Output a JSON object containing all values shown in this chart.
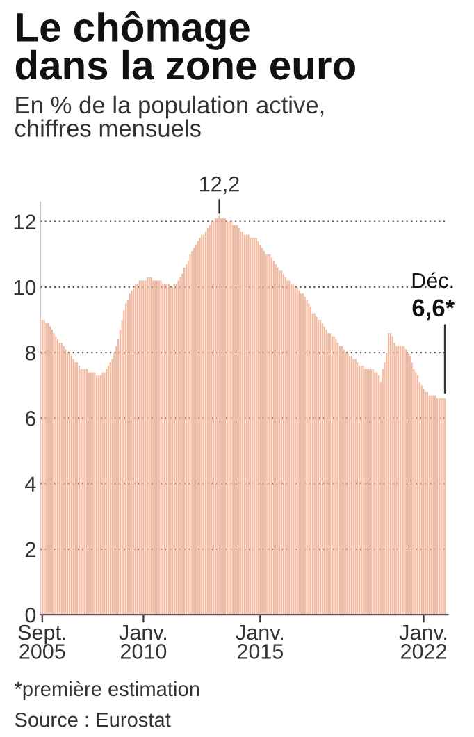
{
  "chart_data": {
    "type": "bar",
    "title": "Le chômage\ndans la zone euro",
    "subtitle": "En % de la population active,\nchiffres mensuels",
    "color": "#f0b9a0",
    "x": [
      "2005-09",
      "2005-10",
      "2005-11",
      "2005-12",
      "2006-01",
      "2006-02",
      "2006-03",
      "2006-04",
      "2006-05",
      "2006-06",
      "2006-07",
      "2006-08",
      "2006-09",
      "2006-10",
      "2006-11",
      "2006-12",
      "2007-01",
      "2007-02",
      "2007-03",
      "2007-04",
      "2007-05",
      "2007-06",
      "2007-07",
      "2007-08",
      "2007-09",
      "2007-10",
      "2007-11",
      "2007-12",
      "2008-01",
      "2008-02",
      "2008-03",
      "2008-04",
      "2008-05",
      "2008-06",
      "2008-07",
      "2008-08",
      "2008-09",
      "2008-10",
      "2008-11",
      "2008-12",
      "2009-01",
      "2009-02",
      "2009-03",
      "2009-04",
      "2009-05",
      "2009-06",
      "2009-07",
      "2009-08",
      "2009-09",
      "2009-10",
      "2009-11",
      "2009-12",
      "2010-01",
      "2010-02",
      "2010-03",
      "2010-04",
      "2010-05",
      "2010-06",
      "2010-07",
      "2010-08",
      "2010-09",
      "2010-10",
      "2010-11",
      "2010-12",
      "2011-01",
      "2011-02",
      "2011-03",
      "2011-04",
      "2011-05",
      "2011-06",
      "2011-07",
      "2011-08",
      "2011-09",
      "2011-10",
      "2011-11",
      "2011-12",
      "2012-01",
      "2012-02",
      "2012-03",
      "2012-04",
      "2012-05",
      "2012-06",
      "2012-07",
      "2012-08",
      "2012-09",
      "2012-10",
      "2012-11",
      "2012-12",
      "2013-01",
      "2013-02",
      "2013-03",
      "2013-04",
      "2013-05",
      "2013-06",
      "2013-07",
      "2013-08",
      "2013-09",
      "2013-10",
      "2013-11",
      "2013-12",
      "2014-01",
      "2014-02",
      "2014-03",
      "2014-04",
      "2014-05",
      "2014-06",
      "2014-07",
      "2014-08",
      "2014-09",
      "2014-10",
      "2014-11",
      "2014-12",
      "2015-01",
      "2015-02",
      "2015-03",
      "2015-04",
      "2015-05",
      "2015-06",
      "2015-07",
      "2015-08",
      "2015-09",
      "2015-10",
      "2015-11",
      "2015-12",
      "2016-01",
      "2016-02",
      "2016-03",
      "2016-04",
      "2016-05",
      "2016-06",
      "2016-07",
      "2016-08",
      "2016-09",
      "2016-10",
      "2016-11",
      "2016-12",
      "2017-01",
      "2017-02",
      "2017-03",
      "2017-04",
      "2017-05",
      "2017-06",
      "2017-07",
      "2017-08",
      "2017-09",
      "2017-10",
      "2017-11",
      "2017-12",
      "2018-01",
      "2018-02",
      "2018-03",
      "2018-04",
      "2018-05",
      "2018-06",
      "2018-07",
      "2018-08",
      "2018-09",
      "2018-10",
      "2018-11",
      "2018-12",
      "2019-01",
      "2019-02",
      "2019-03",
      "2019-04",
      "2019-05",
      "2019-06",
      "2019-07",
      "2019-08",
      "2019-09",
      "2019-10",
      "2019-11",
      "2019-12",
      "2020-01",
      "2020-02",
      "2020-03",
      "2020-04",
      "2020-05",
      "2020-06",
      "2020-07",
      "2020-08",
      "2020-09",
      "2020-10",
      "2020-11",
      "2020-12",
      "2021-01",
      "2021-02",
      "2021-03",
      "2021-04",
      "2021-05",
      "2021-06",
      "2021-07",
      "2021-08",
      "2021-09",
      "2021-10",
      "2021-11",
      "2021-12",
      "2022-01",
      "2022-02",
      "2022-03",
      "2022-04",
      "2022-05",
      "2022-06",
      "2022-07",
      "2022-08",
      "2022-09",
      "2022-10",
      "2022-11",
      "2022-12"
    ],
    "values": [
      9.0,
      9.0,
      8.9,
      8.9,
      8.8,
      8.7,
      8.6,
      8.5,
      8.4,
      8.3,
      8.3,
      8.2,
      8.1,
      8.0,
      8.0,
      7.9,
      7.8,
      7.7,
      7.7,
      7.6,
      7.5,
      7.5,
      7.5,
      7.5,
      7.4,
      7.4,
      7.4,
      7.4,
      7.3,
      7.3,
      7.3,
      7.4,
      7.4,
      7.5,
      7.6,
      7.7,
      7.8,
      8.0,
      8.2,
      8.4,
      8.7,
      9.0,
      9.3,
      9.5,
      9.6,
      9.8,
      9.9,
      10.0,
      10.1,
      10.1,
      10.2,
      10.2,
      10.2,
      10.2,
      10.3,
      10.3,
      10.3,
      10.2,
      10.2,
      10.2,
      10.2,
      10.2,
      10.1,
      10.1,
      10.1,
      10.1,
      10.0,
      10.0,
      10.1,
      10.1,
      10.2,
      10.3,
      10.4,
      10.6,
      10.7,
      10.8,
      11.0,
      11.1,
      11.2,
      11.3,
      11.4,
      11.5,
      11.6,
      11.6,
      11.7,
      11.8,
      11.9,
      12.0,
      12.0,
      12.1,
      12.1,
      12.2,
      12.1,
      12.1,
      12.1,
      12.0,
      12.0,
      12.0,
      11.9,
      11.9,
      11.9,
      11.8,
      11.7,
      11.7,
      11.6,
      11.6,
      11.6,
      11.5,
      11.5,
      11.5,
      11.5,
      11.4,
      11.3,
      11.2,
      11.1,
      11.0,
      11.0,
      11.0,
      10.9,
      10.8,
      10.7,
      10.6,
      10.5,
      10.5,
      10.4,
      10.3,
      10.2,
      10.2,
      10.1,
      10.1,
      10.0,
      10.0,
      9.9,
      9.8,
      9.8,
      9.7,
      9.6,
      9.5,
      9.4,
      9.2,
      9.2,
      9.1,
      9.0,
      9.0,
      8.9,
      8.8,
      8.7,
      8.6,
      8.6,
      8.5,
      8.5,
      8.4,
      8.3,
      8.2,
      8.2,
      8.1,
      8.0,
      8.0,
      7.9,
      7.9,
      7.8,
      7.8,
      7.7,
      7.6,
      7.6,
      7.6,
      7.5,
      7.5,
      7.5,
      7.5,
      7.5,
      7.4,
      7.4,
      7.3,
      7.1,
      7.5,
      7.7,
      8.0,
      8.6,
      8.6,
      8.5,
      8.3,
      8.2,
      8.2,
      8.2,
      8.2,
      8.2,
      8.1,
      8.0,
      7.9,
      7.7,
      7.5,
      7.4,
      7.3,
      7.1,
      7.0,
      6.9,
      6.8,
      6.8,
      6.7,
      6.7,
      6.7,
      6.7,
      6.6,
      6.6,
      6.6,
      6.6,
      6.6
    ],
    "xlim": [
      "2005-08-01",
      "2023-01-16"
    ],
    "xticks": [
      {
        "value": "2005-09",
        "label": "Sept.\n2005"
      },
      {
        "value": "2010-01",
        "label": "Janv.\n2010"
      },
      {
        "value": "2015-01",
        "label": "Janv.\n2015"
      },
      {
        "value": "2022-01",
        "label": "Janv.\n2022"
      }
    ],
    "ylim": [
      0,
      12.6
    ],
    "yticks": [
      0,
      2,
      4,
      6,
      8,
      10,
      12
    ],
    "grid": "y",
    "annotations": [
      {
        "text": "12,2",
        "x": "2013-04",
        "y": 12.2
      },
      {
        "text": "Déc.\n6,6*",
        "x": "2022-12",
        "y": 6.6
      },
      "*première estimation",
      "Source : Eurostat"
    ]
  }
}
